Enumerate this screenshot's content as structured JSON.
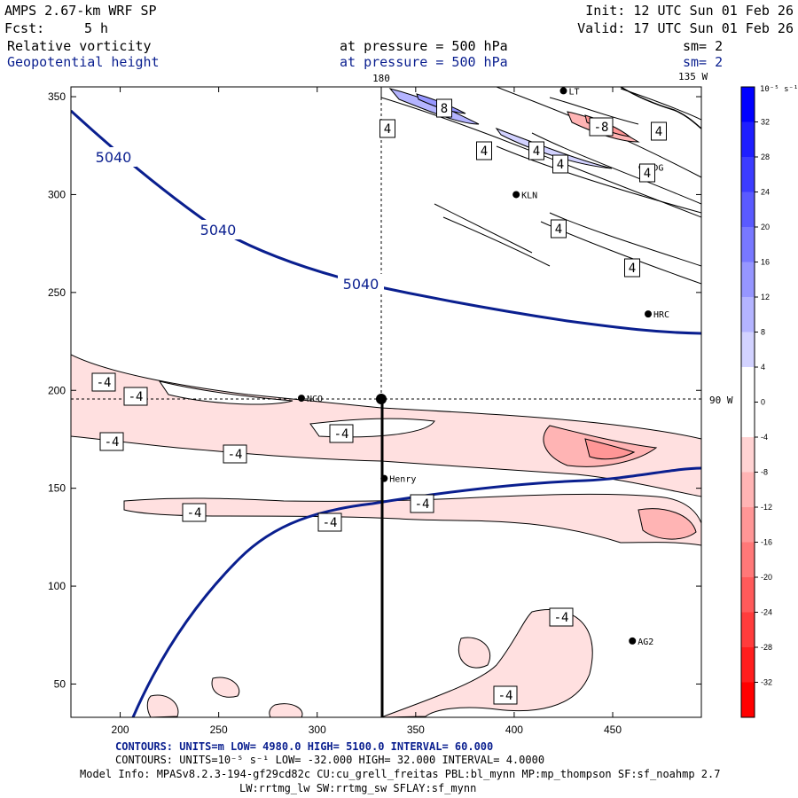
{
  "header": {
    "title": "AMPS 2.67-km WRF SP",
    "fcst_label": "Fcst:",
    "fcst_value": "5 h",
    "init": "Init: 12 UTC Sun 01 Feb 26",
    "valid": "Valid: 17 UTC Sun 01 Feb 26",
    "field1_name": "Relative vorticity",
    "field1_level": "at pressure =  500 hPa",
    "field1_sm": "sm= 2",
    "field2_name": "Geopotential height",
    "field2_level": "at pressure =  500 hPa",
    "field2_sm": "sm= 2"
  },
  "map": {
    "x_ticks": [
      "200",
      "250",
      "300",
      "350",
      "400",
      "450"
    ],
    "y_ticks": [
      "50",
      "100",
      "150",
      "200",
      "250",
      "300",
      "350"
    ],
    "x_range": [
      175,
      495
    ],
    "y_range": [
      33,
      355
    ],
    "meridian_label_top": "180",
    "meridian_label_topright": "135 W",
    "parallel_label": "90 W",
    "stations": [
      {
        "name": "KLN",
        "x": 401,
        "y": 300
      },
      {
        "name": "RDG",
        "x": 465,
        "y": 314
      },
      {
        "name": "HRC",
        "x": 468,
        "y": 239
      },
      {
        "name": "NCO",
        "x": 292,
        "y": 196
      },
      {
        "name": "Henry",
        "x": 334,
        "y": 155
      },
      {
        "name": "AG2",
        "x": 460,
        "y": 72
      },
      {
        "name": "LT",
        "x": 425,
        "y": 353
      }
    ],
    "height_labels": [
      "5040",
      "5040",
      "5040"
    ],
    "vort_labels": [
      "-4",
      "-4",
      "-4",
      "-4",
      "-4",
      "-4",
      "-4",
      "-4",
      "-4",
      "-4",
      "-8",
      "8",
      "4",
      "4",
      "4",
      "4",
      "4",
      "4",
      "4",
      "4"
    ]
  },
  "colorbar": {
    "unit_label": "10⁻⁵ s⁻¹",
    "tick_labels": [
      "32",
      "28",
      "24",
      "20",
      "16",
      "12",
      "8",
      "4",
      "0",
      "-4",
      "-8",
      "-12",
      "-16",
      "-20",
      "-24",
      "-28",
      "-32"
    ],
    "colors": [
      "#0000ff",
      "#1e1eff",
      "#3c3cff",
      "#5a5aff",
      "#7878ff",
      "#9696ff",
      "#b4b4ff",
      "#d2d2ff",
      "#ffffff",
      "#ffffff",
      "#ffd2d2",
      "#ffb4b4",
      "#ff9696",
      "#ff7878",
      "#ff5a5a",
      "#ff3c3c",
      "#ff1e1e",
      "#ff0000"
    ]
  },
  "footer": {
    "line1": "CONTOURS:  UNITS=m  LOW=  4980.0         HIGH=  5100.0         INTERVAL=   60.000",
    "line2": "CONTOURS:  UNITS=10⁻⁵ s⁻¹  LOW=  -32.000      HIGH=  32.000       INTERVAL=   4.0000",
    "line3": "Model Info: MPASv8.2.3-194-gf29cd82c CU:cu_grell_freitas PBL:bl_mynn MP:mp_thompson SF:sf_noahmp 2.7",
    "line4": "LW:rrtmg_lw SW:rrtmg_sw SFLAY:sf_mynn"
  }
}
